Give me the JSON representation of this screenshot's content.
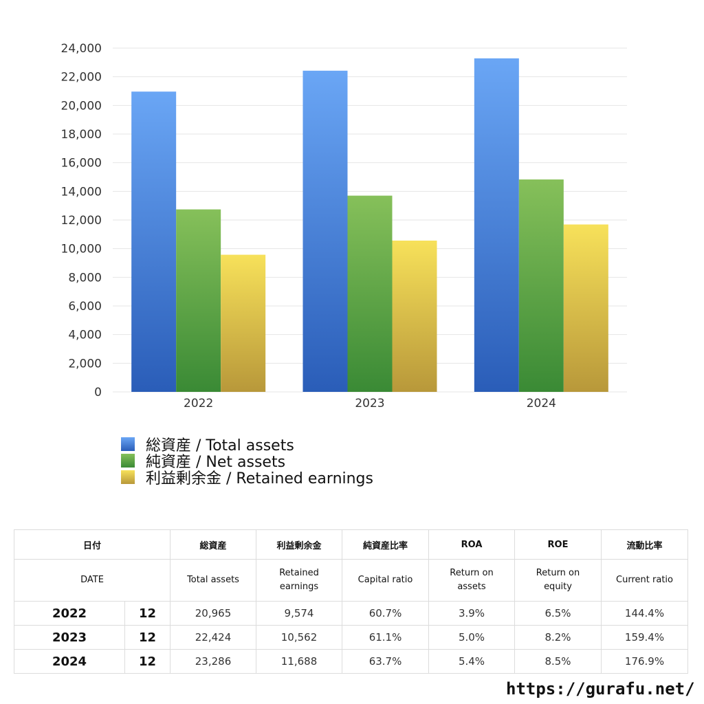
{
  "chart_data": {
    "type": "bar",
    "categories": [
      "2022",
      "2023",
      "2024"
    ],
    "series": [
      {
        "name": "総資産 / Total assets",
        "values": [
          20965,
          22424,
          23286
        ]
      },
      {
        "name": "純資産 / Net assets",
        "values": [
          12740,
          13700,
          14830
        ]
      },
      {
        "name": "利益剰余金 / Retained earnings",
        "values": [
          9574,
          10562,
          11688
        ]
      }
    ],
    "ylim": [
      0,
      24000
    ],
    "yticks": [
      "0",
      "2,000",
      "4,000",
      "6,000",
      "8,000",
      "10,000",
      "12,000",
      "14,000",
      "16,000",
      "18,000",
      "20,000",
      "22,000",
      "24,000"
    ],
    "grid": true,
    "legend_position": "bottom-left",
    "colors": {
      "total_assets": [
        "#6aa6f5",
        "#2a5db8"
      ],
      "net_assets": [
        "#86c05a",
        "#3a8a35"
      ],
      "retained_earnings": [
        "#f7e15a",
        "#b8983a"
      ]
    }
  },
  "legend": {
    "items": [
      "総資産 / Total assets",
      "純資産 / Net assets",
      "利益剰余金 / Retained earnings"
    ]
  },
  "table": {
    "header_jp": [
      "日付",
      "総資産",
      "利益剰余金",
      "純資産比率",
      "ROA",
      "ROE",
      "流動比率"
    ],
    "header_en": {
      "date": "DATE",
      "total_assets": "Total assets",
      "retained_1": "Retained",
      "retained_2": "earnings",
      "capital_ratio": "Capital ratio",
      "roa_1": "Return on",
      "roa_2": "assets",
      "roe_1": "Return on",
      "roe_2": "equity",
      "current_ratio": "Current ratio"
    },
    "rows": [
      {
        "year": "2022",
        "month": "12",
        "total_assets": "20,965",
        "retained": "9,574",
        "capital_ratio": "60.7%",
        "roa": "3.9%",
        "roe": "6.5%",
        "current_ratio": "144.4%"
      },
      {
        "year": "2023",
        "month": "12",
        "total_assets": "22,424",
        "retained": "10,562",
        "capital_ratio": "61.1%",
        "roa": "5.0%",
        "roe": "8.2%",
        "current_ratio": "159.4%"
      },
      {
        "year": "2024",
        "month": "12",
        "total_assets": "23,286",
        "retained": "11,688",
        "capital_ratio": "63.7%",
        "roa": "5.4%",
        "roe": "8.5%",
        "current_ratio": "176.9%"
      }
    ]
  },
  "footer": {
    "url": "https://gurafu.net/"
  }
}
